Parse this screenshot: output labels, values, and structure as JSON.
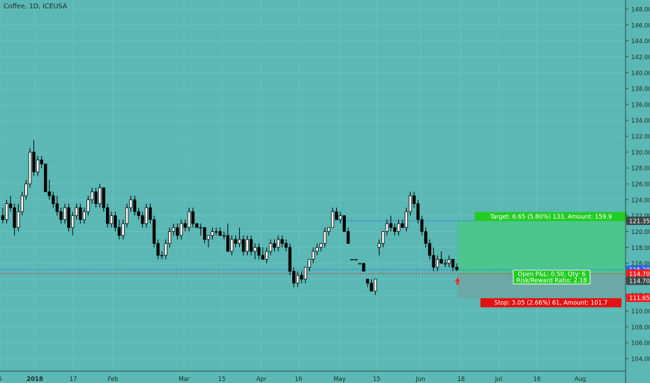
{
  "header": {
    "title": "Coffee, 1D, ICEUSA"
  },
  "colors": {
    "background": "#5bb8b4",
    "grid": "#68c2bd",
    "candle_up": "#ffffff",
    "candle_down": "#000000",
    "wick": "#000000",
    "target_zone": "#4cc58f",
    "stop_zone": "#6ca8a6",
    "target_label": "#22cc22",
    "stop_label": "#e21212",
    "price_blue": "#2962ff",
    "price_red": "#ef1e1e",
    "entry_arrow": "#ff2222"
  },
  "chart_data": {
    "type": "candlestick",
    "title": "Coffee, 1D, ICEUSA",
    "y_ticks": [
      "148.00",
      "146.00",
      "144.00",
      "142.00",
      "140.00",
      "138.00",
      "136.00",
      "134.00",
      "132.00",
      "130.00",
      "128.00",
      "126.00",
      "124.00",
      "122.00",
      "120.00",
      "118.00",
      "116.00",
      "114.00",
      "112.00",
      "110.00",
      "108.00",
      "106.00",
      "104.00"
    ],
    "ylim": [
      102.6,
      149.6
    ],
    "x_ticks": [
      "5",
      "2018",
      "17",
      "Feb",
      "Mar",
      "15",
      "Apr",
      "16",
      "May",
      "15",
      "Jun",
      "18",
      "Jul",
      "16",
      "Aug"
    ],
    "series": [
      {
        "name": "ohlc",
        "ohlc": [
          [
            122.0,
            123.0,
            121.0,
            121.5
          ],
          [
            121.5,
            124.0,
            121.0,
            123.5
          ],
          [
            123.5,
            124.5,
            122.5,
            123.0
          ],
          [
            123.0,
            123.5,
            119.5,
            120.5
          ],
          [
            120.5,
            123.5,
            120.0,
            122.5
          ],
          [
            122.5,
            125.0,
            122.0,
            124.5
          ],
          [
            124.5,
            126.5,
            124.0,
            126.0
          ],
          [
            126.0,
            130.5,
            125.5,
            130.0
          ],
          [
            130.0,
            131.5,
            127.0,
            127.5
          ],
          [
            127.5,
            129.5,
            127.0,
            129.0
          ],
          [
            129.0,
            129.5,
            128.0,
            128.5
          ],
          [
            128.5,
            128.5,
            125.0,
            125.0
          ],
          [
            125.0,
            126.5,
            124.0,
            124.5
          ],
          [
            124.5,
            125.0,
            123.0,
            123.5
          ],
          [
            123.5,
            124.5,
            122.0,
            122.5
          ],
          [
            122.5,
            123.0,
            121.0,
            121.5
          ],
          [
            121.5,
            123.5,
            121.0,
            123.0
          ],
          [
            123.0,
            123.5,
            120.0,
            120.5
          ],
          [
            120.5,
            122.5,
            119.5,
            122.0
          ],
          [
            122.0,
            123.5,
            121.5,
            123.0
          ],
          [
            123.0,
            123.5,
            121.0,
            121.5
          ],
          [
            121.5,
            123.0,
            121.0,
            122.5
          ],
          [
            122.5,
            124.5,
            122.0,
            124.0
          ],
          [
            124.0,
            125.5,
            123.5,
            125.0
          ],
          [
            125.0,
            125.5,
            123.0,
            123.5
          ],
          [
            123.5,
            126.0,
            123.0,
            125.5
          ],
          [
            125.5,
            125.5,
            122.5,
            123.0
          ],
          [
            123.0,
            123.5,
            120.5,
            121.0
          ],
          [
            121.0,
            122.5,
            120.5,
            122.0
          ],
          [
            122.0,
            122.5,
            120.0,
            120.5
          ],
          [
            120.5,
            121.5,
            119.0,
            119.5
          ],
          [
            119.5,
            121.5,
            119.0,
            121.0
          ],
          [
            121.0,
            123.5,
            120.5,
            123.0
          ],
          [
            123.0,
            124.5,
            122.5,
            124.0
          ],
          [
            124.0,
            124.5,
            122.0,
            122.5
          ],
          [
            122.5,
            123.0,
            121.5,
            122.0
          ],
          [
            122.0,
            122.5,
            120.5,
            121.0
          ],
          [
            121.0,
            123.5,
            120.5,
            123.0
          ],
          [
            123.0,
            123.5,
            121.0,
            121.5
          ],
          [
            121.5,
            122.0,
            118.0,
            118.5
          ],
          [
            118.5,
            119.0,
            116.5,
            117.0
          ],
          [
            117.0,
            117.5,
            116.5,
            117.0
          ],
          [
            117.0,
            119.0,
            116.5,
            118.5
          ],
          [
            118.5,
            120.5,
            118.0,
            120.0
          ],
          [
            120.0,
            121.0,
            119.5,
            120.5
          ],
          [
            120.5,
            121.0,
            119.0,
            119.5
          ],
          [
            119.5,
            121.5,
            119.0,
            121.0
          ],
          [
            121.0,
            121.5,
            120.0,
            120.5
          ],
          [
            120.5,
            123.0,
            120.0,
            122.5
          ],
          [
            122.5,
            123.0,
            120.5,
            121.0
          ],
          [
            121.0,
            121.0,
            120.5,
            120.5
          ],
          [
            120.5,
            121.0,
            119.5,
            120.5
          ],
          [
            120.5,
            120.5,
            118.5,
            119.0
          ],
          [
            119.0,
            119.5,
            118.0,
            119.5
          ],
          [
            119.5,
            120.5,
            119.0,
            120.0
          ],
          [
            120.0,
            120.5,
            119.5,
            120.0
          ],
          [
            120.0,
            120.5,
            119.5,
            119.5
          ],
          [
            119.5,
            120.0,
            119.0,
            119.5
          ],
          [
            119.5,
            121.0,
            117.5,
            117.5
          ],
          [
            117.5,
            119.5,
            117.0,
            119.0
          ],
          [
            119.0,
            119.5,
            118.0,
            118.5
          ],
          [
            118.5,
            120.5,
            118.0,
            119.0
          ],
          [
            119.0,
            119.5,
            117.0,
            117.5
          ],
          [
            117.5,
            119.5,
            117.0,
            119.0
          ],
          [
            119.0,
            119.5,
            117.0,
            117.5
          ],
          [
            117.5,
            118.5,
            116.5,
            118.0
          ],
          [
            118.0,
            118.5,
            116.5,
            117.0
          ],
          [
            117.0,
            118.0,
            116.5,
            116.5
          ],
          [
            116.5,
            118.0,
            116.0,
            117.5
          ],
          [
            117.5,
            119.0,
            117.0,
            118.5
          ],
          [
            118.5,
            119.0,
            117.5,
            118.0
          ],
          [
            118.0,
            119.5,
            117.5,
            119.0
          ],
          [
            119.0,
            119.5,
            118.0,
            118.5
          ],
          [
            118.5,
            119.0,
            117.5,
            118.0
          ],
          [
            118.0,
            118.5,
            114.5,
            115.0
          ],
          [
            115.0,
            115.5,
            113.0,
            113.5
          ],
          [
            113.5,
            115.0,
            113.0,
            114.5
          ],
          [
            114.5,
            115.0,
            113.5,
            114.0
          ],
          [
            114.0,
            115.5,
            113.5,
            115.5
          ],
          [
            115.5,
            116.5,
            115.0,
            116.5
          ],
          [
            116.5,
            118.0,
            116.0,
            117.5
          ],
          [
            117.5,
            118.5,
            117.0,
            118.0
          ],
          [
            118.0,
            118.5,
            117.5,
            118.5
          ],
          [
            118.5,
            120.5,
            118.0,
            120.0
          ],
          [
            120.0,
            120.5,
            119.5,
            120.5
          ],
          [
            120.5,
            123.0,
            120.5,
            122.5
          ],
          [
            122.5,
            123.0,
            121.5,
            121.5
          ],
          [
            121.5,
            122.5,
            121.0,
            122.0
          ],
          [
            122.0,
            122.0,
            120.0,
            120.0
          ],
          [
            120.0,
            120.5,
            118.5,
            118.5
          ],
          [
            116.5,
            116.5,
            116.5,
            116.5
          ],
          [
            116.5,
            116.5,
            116.5,
            116.5
          ],
          [
            116.0,
            116.0,
            116.0,
            116.0
          ],
          [
            116.0,
            116.0,
            115.0,
            115.0
          ],
          [
            114.0,
            114.0,
            113.0,
            113.5
          ],
          [
            113.5,
            114.0,
            112.5,
            112.5
          ],
          [
            112.5,
            114.0,
            112.0,
            114.0
          ],
          [
            118.0,
            119.0,
            117.0,
            118.5
          ],
          [
            118.5,
            120.0,
            118.0,
            120.0
          ],
          [
            120.0,
            121.5,
            119.5,
            121.0
          ],
          [
            121.0,
            122.0,
            120.0,
            120.5
          ],
          [
            120.5,
            121.0,
            119.5,
            120.0
          ],
          [
            120.0,
            121.5,
            119.5,
            121.0
          ],
          [
            121.0,
            121.5,
            120.5,
            120.5
          ],
          [
            120.5,
            123.0,
            120.0,
            122.5
          ],
          [
            122.5,
            125.0,
            122.0,
            124.5
          ],
          [
            124.5,
            125.0,
            123.0,
            123.5
          ],
          [
            123.5,
            124.0,
            121.0,
            121.5
          ],
          [
            121.5,
            122.0,
            119.5,
            120.0
          ],
          [
            120.0,
            120.5,
            118.0,
            118.5
          ],
          [
            118.5,
            119.0,
            116.5,
            117.0
          ],
          [
            117.0,
            118.0,
            115.0,
            115.5
          ],
          [
            115.5,
            117.0,
            115.0,
            116.5
          ],
          [
            116.5,
            117.5,
            116.0,
            116.0
          ],
          [
            116.0,
            116.5,
            115.5,
            116.0
          ],
          [
            116.0,
            117.0,
            115.5,
            116.5
          ],
          [
            116.5,
            116.5,
            115.0,
            115.5
          ],
          [
            115.5,
            116.0,
            115.0,
            115.2
          ]
        ]
      }
    ],
    "lines": [
      {
        "price": 115.2,
        "style": "dashed",
        "color": "blue",
        "label": "115.20"
      },
      {
        "price": 114.7,
        "style": "dashed",
        "color": "red",
        "label": "114.70"
      }
    ],
    "price_tags": [
      {
        "price": 121.35,
        "text": "121.35",
        "color": "dark"
      },
      {
        "price": 115.2,
        "text": "115.20",
        "color": "blue"
      },
      {
        "price": 114.7,
        "text": "114.70",
        "color": "red"
      },
      {
        "price": 113.8,
        "text": "114.70",
        "color": "dark"
      },
      {
        "price": 111.65,
        "text": "111.65",
        "color": "red"
      }
    ],
    "position": {
      "entry": 114.7,
      "target": 121.35,
      "stop": 111.65,
      "target_text": "Target: 6.65 (5.80%) 133, Amount: 159.9",
      "stop_text": "Stop: 3.05 (2.66%) 61, Amount: 101.7",
      "pnl_line1": "Open P&L: 0.50, Qty: 6",
      "pnl_line2": "Risk/Reward Ratio: 2.18"
    },
    "grid": "on"
  }
}
